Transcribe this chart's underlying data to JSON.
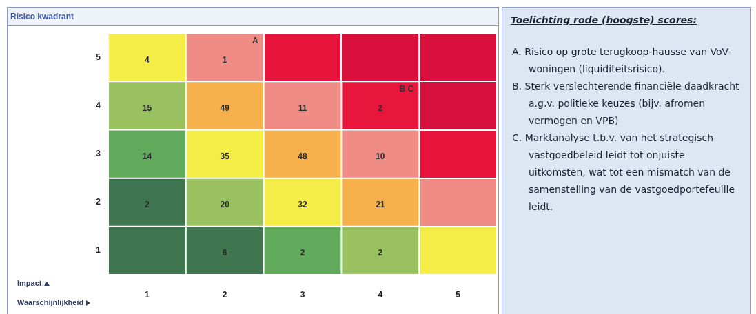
{
  "chart_data": {
    "type": "heatmap",
    "title": "Risico kwadrant",
    "xlabel": "Waarschijnlijkheid",
    "data_labels": true,
    "categories": [
      "1",
      "2",
      "3",
      "4",
      "5"
    ],
    "y_categories": [
      "5",
      "4",
      "3",
      "2",
      "1"
    ],
    "cells": [
      [
        4,
        1,
        null,
        null,
        null
      ],
      [
        15,
        49,
        11,
        2,
        null
      ],
      [
        14,
        35,
        48,
        10,
        null
      ],
      [
        2,
        20,
        32,
        21,
        null
      ],
      [
        null,
        6,
        2,
        2,
        null
      ]
    ],
    "colors": [
      [
        "#f5ed47",
        "#f08c86",
        "#e8143c",
        "#d90f3c",
        "#d90f3c"
      ],
      [
        "#99c15f",
        "#f6b04c",
        "#f08c86",
        "#e8163d",
        "#d5103c"
      ],
      [
        "#62ab5c",
        "#f5ed47",
        "#f6b04c",
        "#f08c86",
        "#e8143c"
      ],
      [
        "#3f7650",
        "#99c15f",
        "#f5ed47",
        "#f6b04c",
        "#f08c86"
      ],
      [
        "#3f7650",
        "#3f7650",
        "#62ab5c",
        "#99c15f",
        "#f5ed47"
      ]
    ],
    "annotations": [
      "A",
      "B C",
      "Impact",
      "Toelichting rode (hoogste) scores:",
      "A. Risico op grote terugkoop-hausse van VoV-woningen (liquiditeitsrisico).",
      "B. Sterk verslechterende financiële daadkracht a.g.v. politieke keuzes (bijv. afromen vermogen en VPB)",
      "C. Marktanalyse t.b.v. van het strategisch vastgoedbeleid leidt tot onjuiste uitkomsten, wat tot een mismatch van de samenstelling van de vastgoedportefeuille leidt."
    ]
  }
}
